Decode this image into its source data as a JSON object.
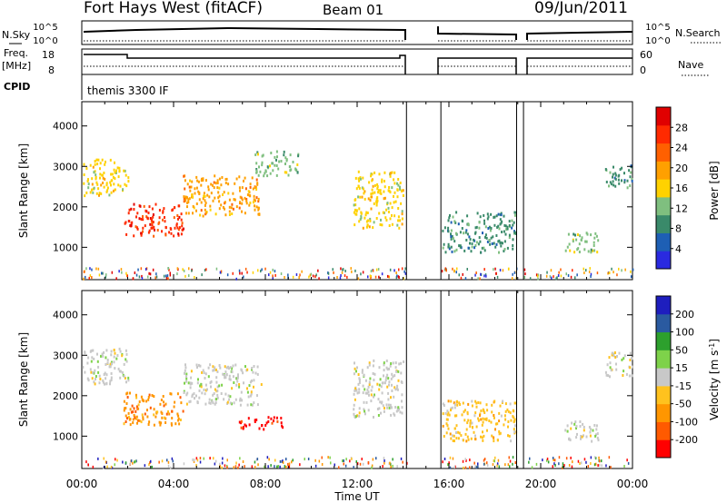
{
  "header": {
    "radar": "Fort Hays West (fitACF)",
    "beam": "Beam 01",
    "date": "09/Jun/2011"
  },
  "params": {
    "nsky_label": "N.Sky",
    "nsearch_label": "N.Search",
    "freq_label": "Freq.",
    "freq_unit": "[MHz]",
    "nave_label": "Nave",
    "cpid_label": "CPID",
    "cpid_value": "themis 3300 IF",
    "noise_ticks": [
      "10^5",
      "10^0"
    ],
    "freq_ticks": [
      "18",
      "8"
    ],
    "nave_ticks": [
      "60",
      "0"
    ]
  },
  "colors": {
    "power": [
      "#2a2ae0",
      "#1e5fb4",
      "#3a8a6a",
      "#7fbf7f",
      "#ffd200",
      "#ffa000",
      "#ff6000",
      "#ff2a00",
      "#e00000"
    ],
    "velocity": [
      "#ff0000",
      "#ff5a00",
      "#ff9600",
      "#ffc21e",
      "#c8c8c8",
      "#7ed24a",
      "#2da02d",
      "#2a5aa0",
      "#1e1ebe"
    ]
  },
  "chart_data": [
    {
      "type": "heatmap",
      "panel": "power",
      "xlabel": "Time UT",
      "ylabel": "Slant Range [km]",
      "xlim": [
        0,
        24
      ],
      "ylim": [
        200,
        4600
      ],
      "x_ticks": [
        "00:00",
        "04:00",
        "08:00",
        "12:00",
        "16:00",
        "20:00",
        "00:00"
      ],
      "y_ticks": [
        "1000",
        "2000",
        "3000",
        "4000"
      ],
      "colorbar_label": "Power [dB]",
      "colorbar_ticks": [
        "28",
        "24",
        "20",
        "16",
        "12",
        "8",
        "4"
      ],
      "data_gaps_hours": [
        [
          14.15,
          15.65
        ],
        [
          18.95,
          19.25
        ]
      ],
      "scatter_regions": [
        {
          "t_start": 0.0,
          "t_end": 2.0,
          "range_start_km": 2300,
          "range_end_km": 3200,
          "power_db": 14
        },
        {
          "t_start": 1.8,
          "t_end": 4.4,
          "range_start_km": 1300,
          "range_end_km": 2100,
          "power_db": 24
        },
        {
          "t_start": 4.4,
          "t_end": 7.8,
          "range_start_km": 1800,
          "range_end_km": 2800,
          "power_db": 20
        },
        {
          "t_start": 7.5,
          "t_end": 9.5,
          "range_start_km": 2800,
          "range_end_km": 3400,
          "power_db": 12
        },
        {
          "t_start": 11.8,
          "t_end": 14.0,
          "range_start_km": 1500,
          "range_end_km": 2900,
          "power_db": 14
        },
        {
          "t_start": 15.7,
          "t_end": 18.9,
          "range_start_km": 900,
          "range_end_km": 1900,
          "power_db": 8
        },
        {
          "t_start": 21.0,
          "t_end": 22.5,
          "range_start_km": 900,
          "range_end_km": 1400,
          "power_db": 12
        },
        {
          "t_start": 22.8,
          "t_end": 24.0,
          "range_start_km": 2500,
          "range_end_km": 3100,
          "power_db": 10
        }
      ]
    },
    {
      "type": "heatmap",
      "panel": "velocity",
      "xlabel": "Time UT",
      "ylabel": "Slant Range [km]",
      "xlim": [
        0,
        24
      ],
      "ylim": [
        200,
        4600
      ],
      "x_ticks": [
        "00:00",
        "04:00",
        "08:00",
        "12:00",
        "16:00",
        "20:00",
        "00:00"
      ],
      "y_ticks": [
        "1000",
        "2000",
        "3000",
        "4000"
      ],
      "colorbar_label": "Velocity [m s^-1]",
      "colorbar_ticks": [
        "200",
        "100",
        "50",
        "15",
        "-15",
        "-50",
        "-100",
        "-200"
      ],
      "data_gaps_hours": [
        [
          14.15,
          15.65
        ],
        [
          18.95,
          19.25
        ]
      ],
      "scatter_regions": [
        {
          "t_start": 0.0,
          "t_end": 2.0,
          "range_start_km": 2300,
          "range_end_km": 3200,
          "velocity_ms": 0
        },
        {
          "t_start": 1.8,
          "t_end": 4.4,
          "range_start_km": 1300,
          "range_end_km": 2100,
          "velocity_ms": -30
        },
        {
          "t_start": 4.4,
          "t_end": 7.8,
          "range_start_km": 1800,
          "range_end_km": 2800,
          "velocity_ms": 5
        },
        {
          "t_start": 6.8,
          "t_end": 8.8,
          "range_start_km": 1200,
          "range_end_km": 1500,
          "velocity_ms": -150
        },
        {
          "t_start": 11.8,
          "t_end": 14.0,
          "range_start_km": 1500,
          "range_end_km": 2900,
          "velocity_ms": 0
        },
        {
          "t_start": 15.7,
          "t_end": 18.9,
          "range_start_km": 900,
          "range_end_km": 1900,
          "velocity_ms": -20
        },
        {
          "t_start": 21.0,
          "t_end": 22.5,
          "range_start_km": 900,
          "range_end_km": 1400,
          "velocity_ms": 5
        },
        {
          "t_start": 22.8,
          "t_end": 24.0,
          "range_start_km": 2500,
          "range_end_km": 3100,
          "velocity_ms": 10
        }
      ]
    }
  ]
}
